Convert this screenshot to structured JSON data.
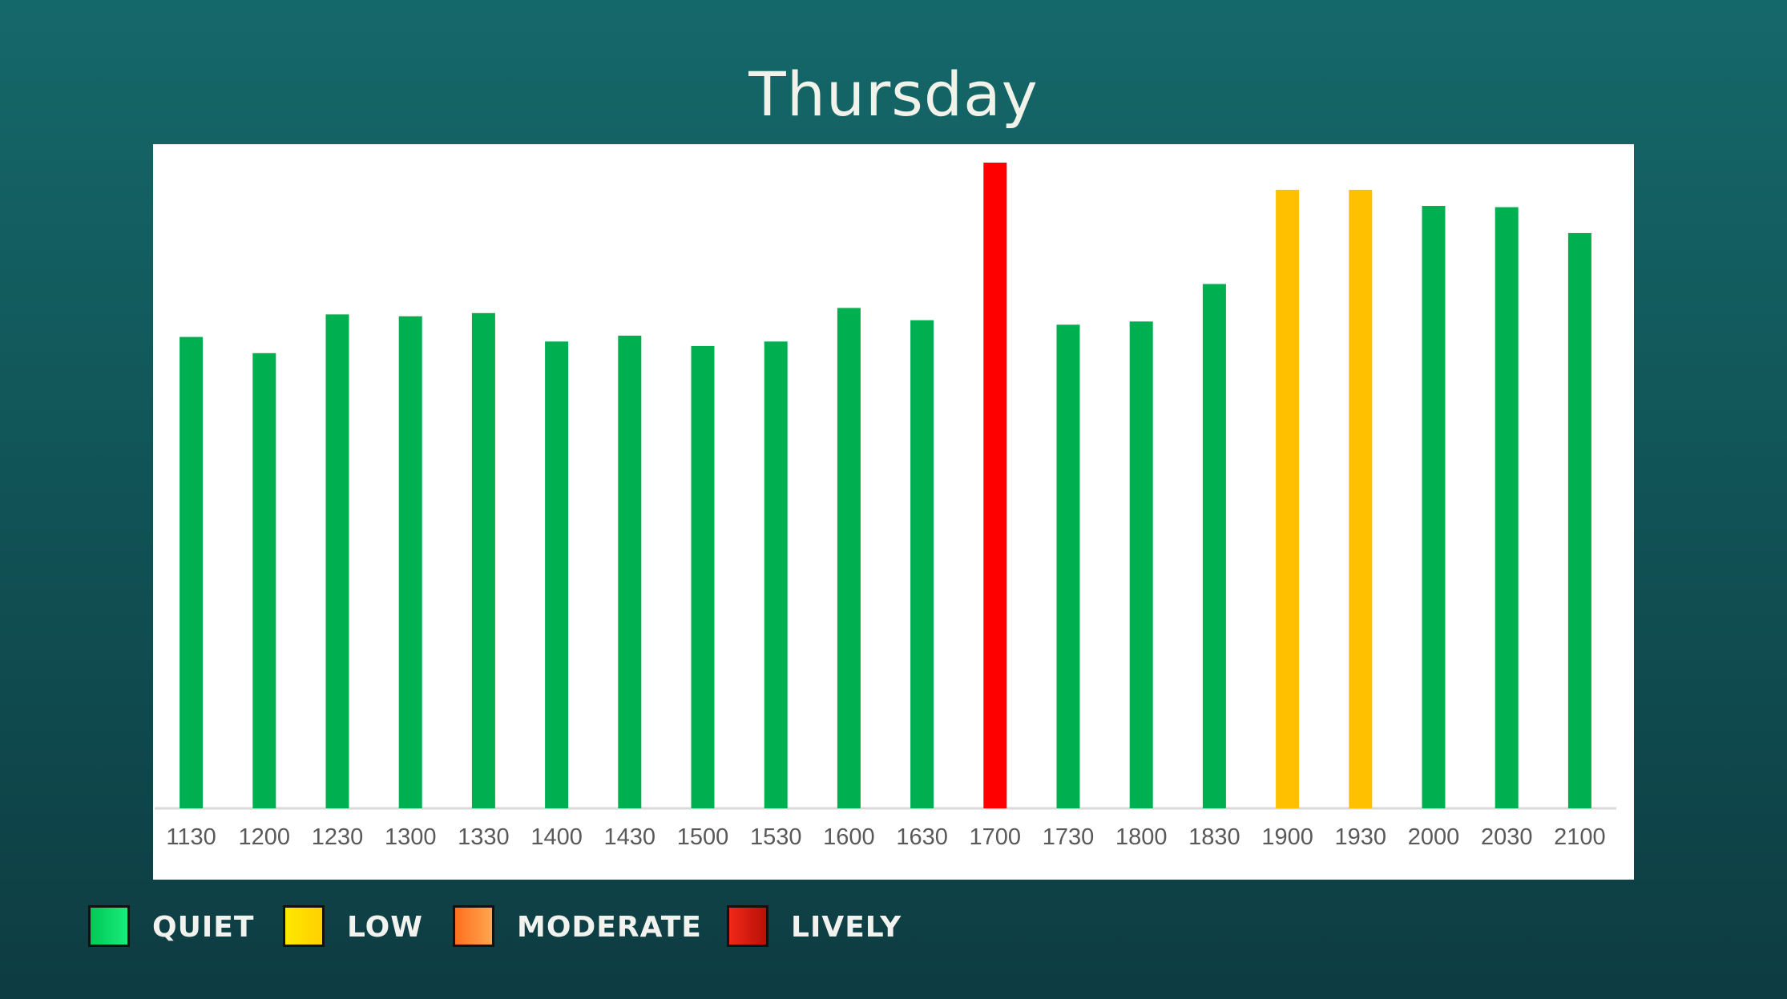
{
  "chart_data": {
    "type": "bar",
    "title": "Thursday",
    "categories": [
      "1130",
      "1200",
      "1230",
      "1300",
      "1330",
      "1400",
      "1430",
      "1500",
      "1530",
      "1600",
      "1630",
      "1700",
      "1730",
      "1800",
      "1830",
      "1900",
      "1930",
      "2000",
      "2030",
      "2100"
    ],
    "values": [
      73,
      70.5,
      76.5,
      76.2,
      76.7,
      72.3,
      73.2,
      71.6,
      72.3,
      77.5,
      75.6,
      100,
      74.9,
      75.4,
      81.2,
      95.8,
      95.8,
      93.3,
      93.1,
      89.1
    ],
    "levels": [
      "QUIET",
      "QUIET",
      "QUIET",
      "QUIET",
      "QUIET",
      "QUIET",
      "QUIET",
      "QUIET",
      "QUIET",
      "QUIET",
      "QUIET",
      "LIVELY",
      "QUIET",
      "QUIET",
      "QUIET",
      "LOW",
      "LOW",
      "QUIET",
      "QUIET",
      "QUIET"
    ],
    "ylim": [
      0,
      100
    ],
    "grid": false,
    "legend_position": "bottom-left"
  },
  "legend": [
    {
      "label": "QUIET",
      "color": "#00b050",
      "swatch_from": "#00c957",
      "swatch_to": "#1aeb7a"
    },
    {
      "label": "LOW",
      "color": "#ffc000",
      "swatch_from": "#ffe800",
      "swatch_to": "#ffd000"
    },
    {
      "label": "MODERATE",
      "color": "#ff8a2a",
      "swatch_from": "#ff6f1f",
      "swatch_to": "#ffa64d"
    },
    {
      "label": "LIVELY",
      "color": "#ff0000",
      "swatch_from": "#f02818",
      "swatch_to": "#b81008"
    }
  ],
  "colors": {
    "axis": "#d9d9d9",
    "tick_text": "#595959"
  }
}
